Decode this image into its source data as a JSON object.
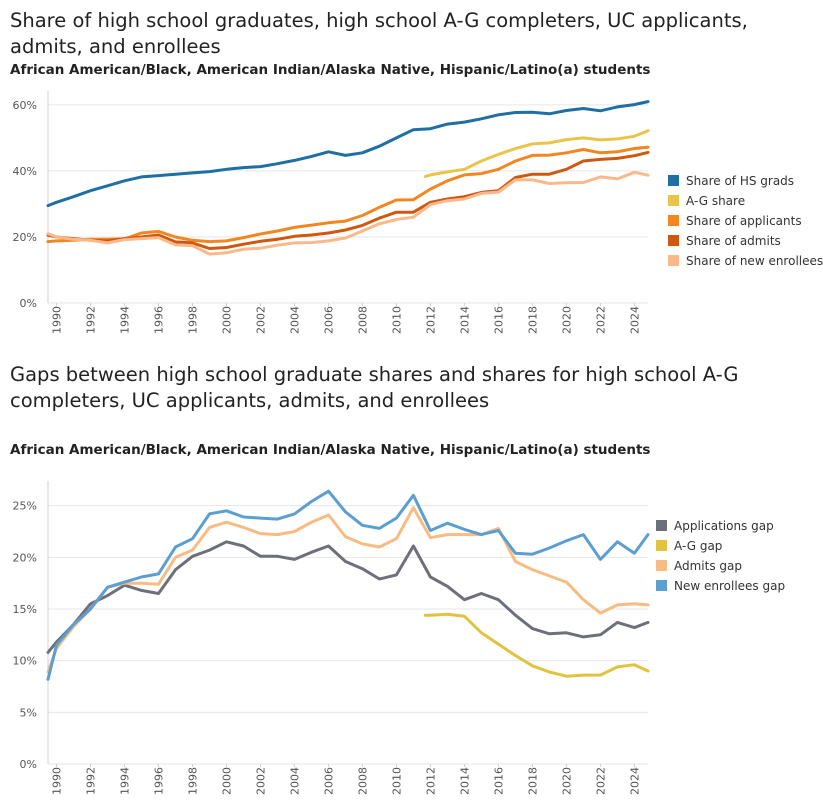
{
  "chart_data": [
    {
      "type": "line",
      "title": "Share of high school graduates, high school A-G completers, UC applicants, admits, and enrollees",
      "subtitle": "African American/Black, American Indian/Alaska Native, Hispanic/Latino(a) students",
      "x_tick_labels": [
        "1990",
        "1992",
        "1994",
        "1996",
        "1998",
        "2000",
        "2002",
        "2004",
        "2006",
        "2008",
        "2010",
        "2012",
        "2014",
        "2016",
        "2018",
        "2020",
        "2022",
        "2024"
      ],
      "xlim": [
        1989.5,
        2024.8
      ],
      "ylim": [
        0,
        63
      ],
      "y_ticks": [
        0,
        20,
        40,
        60
      ],
      "y_tick_labels": [
        "0%",
        "20%",
        "40%",
        "60%"
      ],
      "legend_position": "right",
      "series": [
        {
          "name": "Share of HS grads",
          "color": "#1f6ea4",
          "x": [
            1989.5,
            1990,
            1991,
            1992,
            1993,
            1994,
            1995,
            1996,
            1997,
            1998,
            1999,
            2000,
            2001,
            2002,
            2003,
            2004,
            2005,
            2006,
            2007,
            2008,
            2009,
            2010,
            2011,
            2012,
            2013,
            2014,
            2015,
            2016,
            2017,
            2018,
            2019,
            2020,
            2021,
            2022,
            2023,
            2024,
            2024.8
          ],
          "y": [
            29.5,
            30.5,
            32.2,
            34,
            35.5,
            37,
            38.2,
            38.6,
            39,
            39.4,
            39.8,
            40.5,
            41,
            41.3,
            42.2,
            43.2,
            44.4,
            45.8,
            44.7,
            45.5,
            47.5,
            50,
            52.5,
            52.8,
            54.2,
            54.8,
            55.8,
            57,
            57.7,
            57.8,
            57.3,
            58.3,
            58.9,
            58.2,
            59.4,
            60.1,
            61
          ]
        },
        {
          "name": "A-G share",
          "color": "#e8c54a",
          "x": [
            2011.7,
            2012,
            2013,
            2014,
            2015,
            2016,
            2017,
            2018,
            2019,
            2020,
            2021,
            2022,
            2023,
            2024,
            2024.8
          ],
          "y": [
            38.3,
            38.8,
            39.7,
            40.5,
            43,
            45,
            46.8,
            48.2,
            48.5,
            49.5,
            50,
            49.4,
            49.7,
            50.5,
            52.2
          ]
        },
        {
          "name": "Share of applicants",
          "color": "#f28721",
          "x": [
            1989.5,
            1990,
            1991,
            1992,
            1993,
            1994,
            1995,
            1996,
            1997,
            1998,
            1999,
            2000,
            2001,
            2002,
            2003,
            2004,
            2005,
            2006,
            2007,
            2008,
            2009,
            2010,
            2011,
            2012,
            2013,
            2014,
            2015,
            2016,
            2017,
            2018,
            2019,
            2020,
            2021,
            2022,
            2023,
            2024,
            2024.8
          ],
          "y": [
            18.6,
            18.8,
            19,
            19.3,
            19.3,
            19.4,
            21.2,
            21.7,
            20,
            19,
            18.6,
            18.8,
            19.8,
            20.9,
            21.8,
            22.9,
            23.6,
            24.3,
            24.8,
            26.5,
            29,
            31.2,
            31.3,
            34.5,
            37,
            38.8,
            39.2,
            40.5,
            43,
            44.7,
            44.8,
            45.5,
            46.5,
            45.5,
            45.8,
            46.8,
            47.2
          ]
        },
        {
          "name": "Share of admits",
          "color": "#cf5810",
          "x": [
            1989.5,
            1990,
            1991,
            1992,
            1993,
            1994,
            1995,
            1996,
            1997,
            1998,
            1999,
            2000,
            2001,
            2002,
            2003,
            2004,
            2005,
            2006,
            2007,
            2008,
            2009,
            2010,
            2011,
            2012,
            2013,
            2014,
            2015,
            2016,
            2017,
            2018,
            2019,
            2020,
            2021,
            2022,
            2023,
            2024,
            2024.8
          ],
          "y": [
            20.5,
            20,
            19.5,
            19,
            18.8,
            19.5,
            20,
            20.6,
            18.5,
            18.2,
            16.5,
            16.8,
            17.8,
            18.7,
            19.3,
            20.2,
            20.6,
            21.2,
            22.1,
            23.5,
            25.7,
            27.5,
            27.5,
            30.5,
            31.5,
            32.2,
            33.5,
            34,
            38,
            39,
            39,
            40.5,
            43,
            43.5,
            43.8,
            44.6,
            45.6
          ]
        },
        {
          "name": "Share of new enrollees",
          "color": "#f9b98a",
          "x": [
            1989.5,
            1990,
            1991,
            1992,
            1993,
            1994,
            1995,
            1996,
            1997,
            1998,
            1999,
            2000,
            2001,
            2002,
            2003,
            2004,
            2005,
            2006,
            2007,
            2008,
            2009,
            2010,
            2011,
            2012,
            2013,
            2014,
            2015,
            2016,
            2017,
            2018,
            2019,
            2020,
            2021,
            2022,
            2023,
            2024,
            2024.8
          ],
          "y": [
            21,
            20,
            19.3,
            19,
            18.2,
            19.2,
            19.5,
            19.8,
            17.6,
            17.4,
            14.8,
            15.2,
            16.3,
            16.6,
            17.5,
            18.2,
            18.3,
            18.8,
            19.7,
            21.8,
            24,
            25.3,
            26,
            29.8,
            31,
            31.5,
            33.2,
            33.6,
            37.3,
            37.3,
            36.2,
            36.4,
            36.5,
            38.2,
            37.6,
            39.6,
            38.7
          ]
        }
      ]
    },
    {
      "type": "line",
      "title": "Gaps between high school graduate shares and shares for high school A-G completers, UC applicants, admits, and enrollees",
      "subtitle": "African American/Black, American Indian/Alaska Native, Hispanic/Latino(a) students",
      "x_tick_labels": [
        "1990",
        "1992",
        "1994",
        "1996",
        "1998",
        "2000",
        "2002",
        "2004",
        "2006",
        "2008",
        "2010",
        "2012",
        "2014",
        "2016",
        "2018",
        "2020",
        "2022",
        "2024"
      ],
      "xlim": [
        1989.5,
        2024.8
      ],
      "ylim": [
        0,
        27
      ],
      "y_ticks": [
        0,
        5,
        10,
        15,
        20,
        25
      ],
      "y_tick_labels": [
        "0%",
        "5%",
        "10%",
        "15%",
        "20%",
        "25%"
      ],
      "legend_position": "right",
      "series": [
        {
          "name": "Applications gap",
          "color": "#6e7079",
          "x": [
            1989.5,
            1990,
            1991,
            1992,
            1993,
            1994,
            1995,
            1996,
            1997,
            1998,
            1999,
            2000,
            2001,
            2002,
            2003,
            2004,
            2005,
            2006,
            2007,
            2008,
            2009,
            2010,
            2011,
            2012,
            2013,
            2014,
            2015,
            2016,
            2017,
            2018,
            2019,
            2020,
            2021,
            2022,
            2023,
            2024,
            2024.8
          ],
          "y": [
            10.8,
            11.8,
            13.5,
            15.5,
            16.3,
            17.3,
            16.8,
            16.5,
            18.8,
            20.1,
            20.7,
            21.5,
            21.1,
            20.1,
            20.1,
            19.8,
            20.5,
            21.1,
            19.6,
            18.9,
            17.9,
            18.3,
            21.1,
            18.1,
            17.2,
            15.9,
            16.5,
            15.9,
            14.4,
            13.1,
            12.6,
            12.7,
            12.3,
            12.5,
            13.7,
            13.2,
            13.7
          ]
        },
        {
          "name": "A-G gap",
          "color": "#e2c33f",
          "x": [
            2011.7,
            2012,
            2013,
            2014,
            2015,
            2016,
            2017,
            2018,
            2019,
            2020,
            2021,
            2022,
            2023,
            2024,
            2024.8
          ],
          "y": [
            14.4,
            14.4,
            14.5,
            14.3,
            12.7,
            11.6,
            10.5,
            9.5,
            8.9,
            8.5,
            8.6,
            8.6,
            9.4,
            9.6,
            9
          ]
        },
        {
          "name": "Admits gap",
          "color": "#f8bb82",
          "x": [
            1989.5,
            1990,
            1991,
            1992,
            1993,
            1994,
            1995,
            1996,
            1997,
            1998,
            1999,
            2000,
            2001,
            2002,
            2003,
            2004,
            2005,
            2006,
            2007,
            2008,
            2009,
            2010,
            2011,
            2012,
            2013,
            2014,
            2015,
            2016,
            2017,
            2018,
            2019,
            2020,
            2021,
            2022,
            2023,
            2024,
            2024.8
          ],
          "y": [
            8.9,
            11.2,
            13.3,
            15,
            17.1,
            17.5,
            17.5,
            17.4,
            20,
            20.7,
            22.9,
            23.4,
            22.9,
            22.3,
            22.2,
            22.5,
            23.4,
            24.1,
            22,
            21.3,
            21,
            21.8,
            24.8,
            21.9,
            22.2,
            22.2,
            22.2,
            22.8,
            19.6,
            18.8,
            18.2,
            17.6,
            15.9,
            14.6,
            15.4,
            15.5,
            15.4
          ]
        },
        {
          "name": "New enrollees gap",
          "color": "#5b9fd1",
          "x": [
            1989.5,
            1990,
            1991,
            1992,
            1993,
            1994,
            1995,
            1996,
            1997,
            1998,
            1999,
            2000,
            2001,
            2002,
            2003,
            2004,
            2005,
            2006,
            2007,
            2008,
            2009,
            2010,
            2011,
            2012,
            2013,
            2014,
            2015,
            2016,
            2017,
            2018,
            2019,
            2020,
            2021,
            2022,
            2023,
            2024,
            2024.8
          ],
          "y": [
            8.2,
            11.5,
            13.5,
            15,
            17.1,
            17.6,
            18.1,
            18.4,
            21,
            21.8,
            24.2,
            24.5,
            23.9,
            23.8,
            23.7,
            24.2,
            25.4,
            26.4,
            24.4,
            23.1,
            22.8,
            23.8,
            26,
            22.6,
            23.3,
            22.7,
            22.2,
            22.6,
            20.4,
            20.3,
            20.9,
            21.6,
            22.2,
            19.8,
            21.5,
            20.4,
            22.2
          ]
        }
      ]
    }
  ]
}
